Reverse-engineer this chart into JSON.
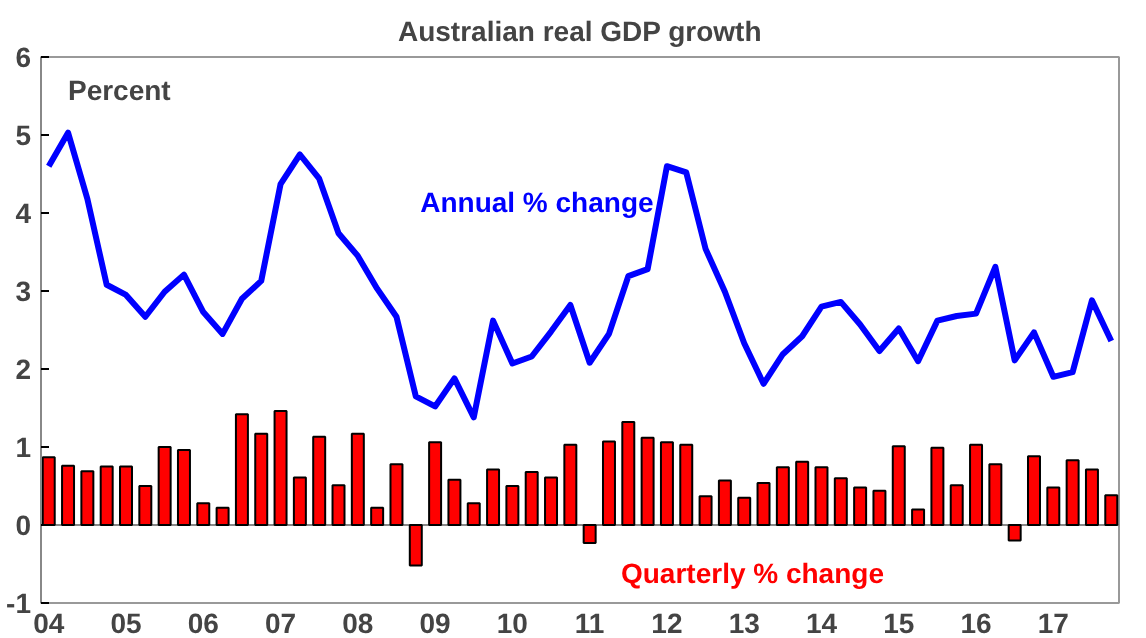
{
  "chart_data": {
    "type": "bar",
    "title": "Australian real GDP growth",
    "annotations": [
      "Percent"
    ],
    "x": [
      2004.0,
      2004.25,
      2004.5,
      2004.75,
      2005.0,
      2005.25,
      2005.5,
      2005.75,
      2006.0,
      2006.25,
      2006.5,
      2006.75,
      2007.0,
      2007.25,
      2007.5,
      2007.75,
      2008.0,
      2008.25,
      2008.5,
      2008.75,
      2009.0,
      2009.25,
      2009.5,
      2009.75,
      2010.0,
      2010.25,
      2010.5,
      2010.75,
      2011.0,
      2011.25,
      2011.5,
      2011.75,
      2012.0,
      2012.25,
      2012.5,
      2012.75,
      2013.0,
      2013.25,
      2013.5,
      2013.75,
      2014.0,
      2014.25,
      2014.5,
      2014.75,
      2015.0,
      2015.25,
      2015.5,
      2015.75,
      2016.0,
      2016.25,
      2016.5,
      2016.75,
      2017.0,
      2017.25,
      2017.5,
      2017.75
    ],
    "xlim": [
      2003.9,
      2017.85
    ],
    "xticks": [
      {
        "value": 2004,
        "label": "04"
      },
      {
        "value": 2005,
        "label": "05"
      },
      {
        "value": 2006,
        "label": "06"
      },
      {
        "value": 2007,
        "label": "07"
      },
      {
        "value": 2008,
        "label": "08"
      },
      {
        "value": 2009,
        "label": "09"
      },
      {
        "value": 2010,
        "label": "10"
      },
      {
        "value": 2011,
        "label": "11"
      },
      {
        "value": 2012,
        "label": "12"
      },
      {
        "value": 2013,
        "label": "13"
      },
      {
        "value": 2014,
        "label": "14"
      },
      {
        "value": 2015,
        "label": "15"
      },
      {
        "value": 2016,
        "label": "16"
      },
      {
        "value": 2017,
        "label": "17"
      }
    ],
    "ylim": [
      -1,
      6
    ],
    "yticks": [
      -1,
      0,
      1,
      2,
      3,
      4,
      5,
      6
    ],
    "grid": false,
    "legend": false,
    "ref_lines": [
      {
        "axis": "y",
        "value": 0
      }
    ],
    "series": [
      {
        "name": "Quarterly % change",
        "color": "#ff0000",
        "values": [
          0.87,
          0.76,
          0.69,
          0.75,
          0.75,
          0.5,
          1.0,
          0.96,
          0.28,
          0.22,
          1.42,
          1.17,
          1.46,
          0.61,
          1.13,
          0.51,
          1.17,
          0.22,
          0.78,
          -0.52,
          1.06,
          0.58,
          0.28,
          0.71,
          0.5,
          0.68,
          0.61,
          1.03,
          -0.23,
          1.07,
          1.32,
          1.12,
          1.06,
          1.03,
          0.37,
          0.57,
          0.35,
          0.54,
          0.74,
          0.81,
          0.74,
          0.6,
          0.48,
          0.44,
          1.01,
          0.2,
          0.99,
          0.51,
          1.03,
          0.78,
          -0.2,
          0.88,
          0.48,
          0.83,
          0.71,
          0.38
        ]
      },
      {
        "name": "Annual % change",
        "type": "line",
        "color": "#0000ff",
        "values": [
          4.6,
          5.03,
          4.18,
          3.08,
          2.95,
          2.67,
          2.99,
          3.21,
          2.73,
          2.45,
          2.9,
          3.13,
          4.37,
          4.75,
          4.44,
          3.74,
          3.45,
          3.03,
          2.67,
          1.65,
          1.52,
          1.88,
          1.38,
          2.62,
          2.07,
          2.16,
          2.48,
          2.82,
          2.08,
          2.45,
          3.19,
          3.28,
          4.6,
          4.52,
          3.54,
          2.99,
          2.33,
          1.81,
          2.19,
          2.42,
          2.8,
          2.86,
          2.57,
          2.23,
          2.52,
          2.1,
          2.62,
          2.68,
          2.71,
          3.31,
          2.11,
          2.47,
          1.9,
          1.96,
          2.88,
          2.36
        ]
      }
    ]
  }
}
